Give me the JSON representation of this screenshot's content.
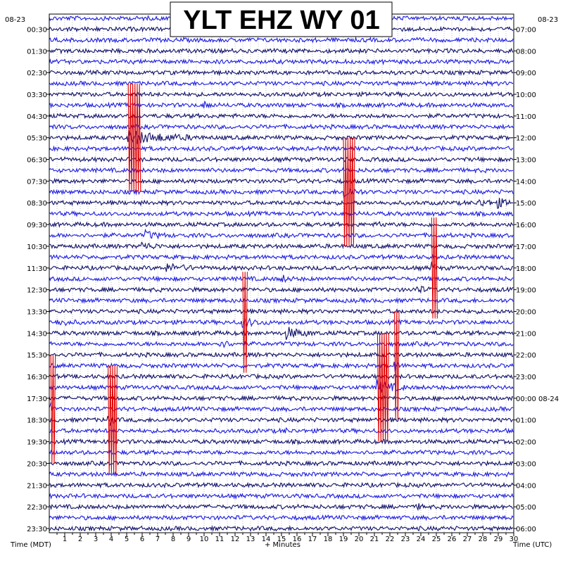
{
  "chart_data": {
    "type": "line",
    "title": "YLT EHZ WY 01",
    "xlabel": "+ Minutes",
    "left_axis_label": "Time (MDT)",
    "right_axis_label": "Time (UTC)",
    "left_date": "08-23",
    "right_date": "08-23",
    "right_date_change": "08-24",
    "xlim": [
      0,
      30
    ],
    "x_ticks": [
      "1",
      "2",
      "3",
      "4",
      "5",
      "6",
      "7",
      "8",
      "9",
      "10",
      "11",
      "12",
      "13",
      "14",
      "15",
      "16",
      "17",
      "18",
      "19",
      "20",
      "21",
      "22",
      "23",
      "24",
      "25",
      "26",
      "27",
      "28",
      "29",
      "30"
    ],
    "left_tick_labels": [
      "00:30",
      "01:30",
      "02:30",
      "03:30",
      "04:30",
      "05:30",
      "06:30",
      "07:30",
      "08:30",
      "09:30",
      "10:30",
      "11:30",
      "12:30",
      "13:30",
      "14:30",
      "15:30",
      "16:30",
      "17:30",
      "18:30",
      "19:30",
      "20:30",
      "21:30",
      "22:30",
      "23:30"
    ],
    "right_tick_labels": [
      "07:00",
      "08:00",
      "09:00",
      "10:00",
      "11:00",
      "12:00",
      "13:00",
      "14:00",
      "15:00",
      "16:00",
      "17:00",
      "18:00",
      "19:00",
      "20:00",
      "21:00",
      "22:00",
      "23:00",
      "00:00 08-24",
      "01:00",
      "02:00",
      "03:00",
      "04:00",
      "05:00",
      "06:00"
    ],
    "trace_rows": 48,
    "trace_colors": [
      "#1c1ce0",
      "#10106a"
    ],
    "clip_color": "#e00000",
    "grid": true,
    "events": [
      {
        "row": 11,
        "minute": 5.1,
        "amp": 1.0,
        "dur": 4.6,
        "clipped": true
      },
      {
        "row": 8,
        "minute": 10.0,
        "amp": 0.45,
        "dur": 0.8,
        "clipped": false
      },
      {
        "row": 16,
        "minute": 19.0,
        "amp": 1.0,
        "dur": 1.3,
        "clipped": true
      },
      {
        "row": 17,
        "minute": 29.0,
        "amp": 0.5,
        "dur": 1.0,
        "clipped": false
      },
      {
        "row": 17,
        "minute": 27.8,
        "amp": 0.4,
        "dur": 1.8,
        "clipped": false
      },
      {
        "row": 19,
        "minute": 21.3,
        "amp": 0.4,
        "dur": 0.6,
        "clipped": false
      },
      {
        "row": 20,
        "minute": 6.2,
        "amp": 0.55,
        "dur": 1.5,
        "clipped": false
      },
      {
        "row": 21,
        "minute": 6.0,
        "amp": 0.5,
        "dur": 1.4,
        "clipped": false
      },
      {
        "row": 23,
        "minute": 7.6,
        "amp": 0.5,
        "dur": 2.2,
        "clipped": false
      },
      {
        "row": 23,
        "minute": 24.7,
        "amp": 0.9,
        "dur": 0.4,
        "clipped": true
      },
      {
        "row": 24,
        "minute": 15.0,
        "amp": 0.5,
        "dur": 0.8,
        "clipped": false
      },
      {
        "row": 25,
        "minute": 23.8,
        "amp": 0.5,
        "dur": 0.8,
        "clipped": false
      },
      {
        "row": 28,
        "minute": 0.5,
        "amp": 0.45,
        "dur": 1.4,
        "clipped": false
      },
      {
        "row": 28,
        "minute": 12.5,
        "amp": 0.9,
        "dur": 0.3,
        "clipped": true
      },
      {
        "row": 28,
        "minute": 12.8,
        "amp": 0.45,
        "dur": 1.5,
        "clipped": false
      },
      {
        "row": 29,
        "minute": 15.3,
        "amp": 0.8,
        "dur": 1.9,
        "clipped": false
      },
      {
        "row": 30,
        "minute": 11.0,
        "amp": 0.45,
        "dur": 1.3,
        "clipped": false
      },
      {
        "row": 32,
        "minute": 22.3,
        "amp": 1.0,
        "dur": 0.3,
        "clipped": true
      },
      {
        "row": 34,
        "minute": 21.2,
        "amp": 1.0,
        "dur": 1.9,
        "clipped": true
      },
      {
        "row": 36,
        "minute": 0.1,
        "amp": 1.0,
        "dur": 0.3,
        "clipped": true
      },
      {
        "row": 37,
        "minute": 3.8,
        "amp": 1.0,
        "dur": 0.6,
        "clipped": true
      },
      {
        "row": 38,
        "minute": 15.2,
        "amp": 0.4,
        "dur": 0.3,
        "clipped": false
      },
      {
        "row": 45,
        "minute": 23.8,
        "amp": 0.35,
        "dur": 0.5,
        "clipped": false
      }
    ]
  }
}
